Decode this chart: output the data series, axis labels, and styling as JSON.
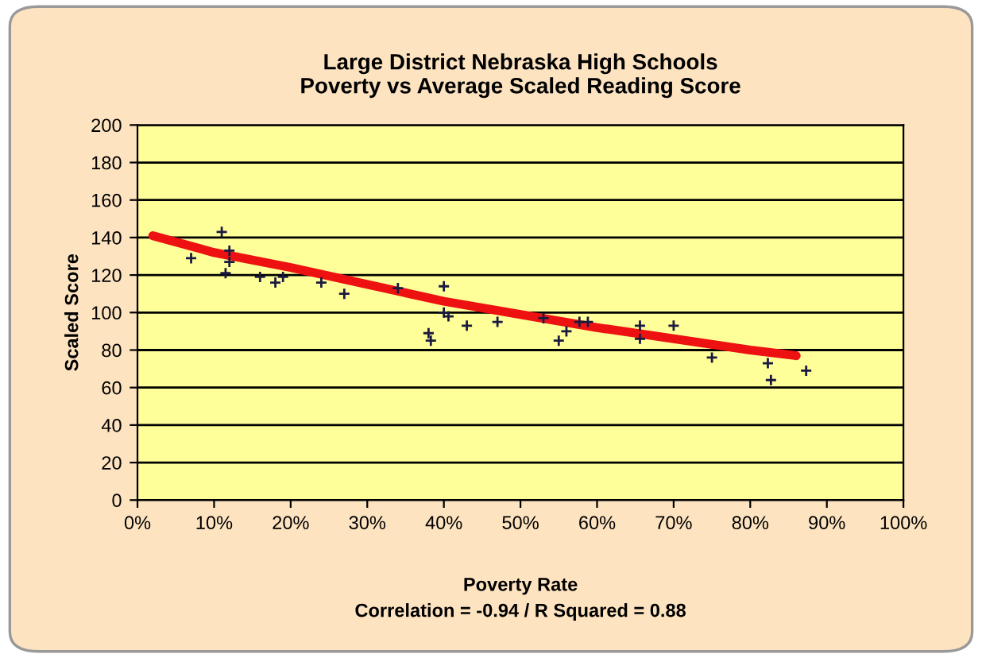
{
  "chart_data": {
    "type": "scatter",
    "title": "Large District Nebraska High Schools\nPoverty vs Average Scaled Reading Score",
    "xlabel": "Poverty Rate",
    "ylabel": "Scaled Score",
    "annotations": [
      "Correlation = -0.94 / R Squared = 0.88"
    ],
    "xlim": [
      0,
      100
    ],
    "ylim": [
      0,
      200
    ],
    "xticks": [
      {
        "value": 0,
        "label": "0%"
      },
      {
        "value": 10,
        "label": "10%"
      },
      {
        "value": 20,
        "label": "20%"
      },
      {
        "value": 30,
        "label": "30%"
      },
      {
        "value": 40,
        "label": "40%"
      },
      {
        "value": 50,
        "label": "50%"
      },
      {
        "value": 60,
        "label": "60%"
      },
      {
        "value": 70,
        "label": "70%"
      },
      {
        "value": 80,
        "label": "80%"
      },
      {
        "value": 90,
        "label": "90%"
      },
      {
        "value": 100,
        "label": "100%"
      }
    ],
    "yticks": [
      0,
      20,
      40,
      60,
      80,
      100,
      120,
      140,
      160,
      180,
      200
    ],
    "grid": "y",
    "legend": false,
    "series": [
      {
        "marker": "cross",
        "color": "#1a1a40",
        "x": [
          7,
          11,
          12,
          12,
          11.5,
          16,
          18,
          19,
          24,
          27,
          34,
          40,
          38,
          38.3,
          40,
          40.6,
          43,
          47,
          53,
          55,
          56,
          57.7,
          58.8,
          65.6,
          65.6,
          70,
          75,
          82.3,
          82.7,
          87.3
        ],
        "values": [
          129,
          143,
          133,
          127,
          121,
          119,
          116,
          119,
          116,
          110,
          113,
          114,
          89,
          85,
          100,
          98,
          93,
          95,
          97,
          85,
          90,
          95,
          95,
          93,
          86,
          93,
          76,
          73,
          64,
          69
        ]
      },
      {
        "type": "line",
        "color": "#ee1111",
        "x": [
          2,
          10,
          20,
          30,
          40,
          50,
          60,
          70,
          80,
          86
        ],
        "values": [
          141,
          132,
          124,
          115,
          106,
          99,
          92,
          86,
          80,
          77
        ]
      }
    ]
  }
}
